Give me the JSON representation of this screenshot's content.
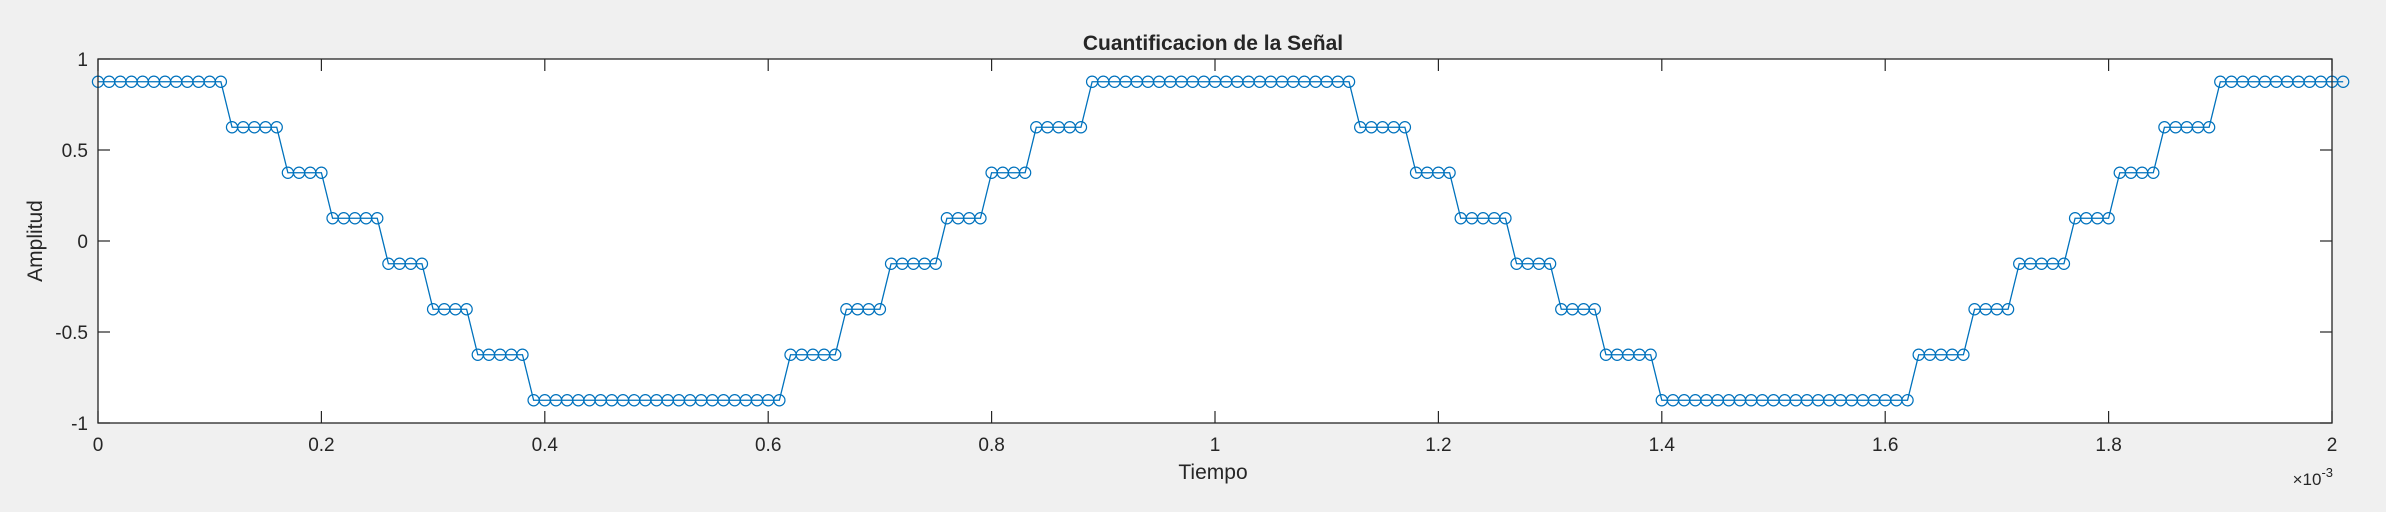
{
  "chart_data": {
    "type": "line",
    "title": "Cuantificacion de la Señal",
    "xlabel": "Tiempo",
    "ylabel": "Amplitud",
    "x_exponent_base": "×10",
    "x_exponent_power": "-3",
    "x_multiplier": 0.001,
    "xlim": [
      0,
      2
    ],
    "ylim": [
      -1,
      1
    ],
    "x_ticks": [
      0,
      0.2,
      0.4,
      0.6,
      0.8,
      1,
      1.2,
      1.4,
      1.6,
      1.8,
      2
    ],
    "x_tick_labels": [
      "0",
      "0.2",
      "0.4",
      "0.6",
      "0.8",
      "1",
      "1.2",
      "1.4",
      "1.6",
      "1.8",
      "2"
    ],
    "y_ticks": [
      -1,
      -0.5,
      0,
      0.5,
      1
    ],
    "y_tick_labels": [
      "-1",
      "-0.5",
      "0",
      "0.5",
      "1"
    ],
    "grid": false,
    "marker": "circle",
    "series_color": "#0072bd",
    "sampling": {
      "start": 0,
      "step": 0.01,
      "count": 201
    },
    "series": [
      {
        "values": [
          0.875,
          0.875,
          0.875,
          0.875,
          0.875,
          0.875,
          0.875,
          0.875,
          0.875,
          0.875,
          0.875,
          0.875,
          0.625,
          0.625,
          0.625,
          0.625,
          0.625,
          0.375,
          0.375,
          0.375,
          0.375,
          0.125,
          0.125,
          0.125,
          0.125,
          0.125,
          -0.125,
          -0.125,
          -0.125,
          -0.125,
          -0.375,
          -0.375,
          -0.375,
          -0.375,
          -0.625,
          -0.625,
          -0.625,
          -0.625,
          -0.625,
          -0.875,
          -0.875,
          -0.875,
          -0.875,
          -0.875,
          -0.875,
          -0.875,
          -0.875,
          -0.875,
          -0.875,
          -0.875,
          -0.875,
          -0.875,
          -0.875,
          -0.875,
          -0.875,
          -0.875,
          -0.875,
          -0.875,
          -0.875,
          -0.875,
          -0.875,
          -0.875,
          -0.625,
          -0.625,
          -0.625,
          -0.625,
          -0.625,
          -0.375,
          -0.375,
          -0.375,
          -0.375,
          -0.125,
          -0.125,
          -0.125,
          -0.125,
          -0.125,
          0.125,
          0.125,
          0.125,
          0.125,
          0.375,
          0.375,
          0.375,
          0.375,
          0.625,
          0.625,
          0.625,
          0.625,
          0.625,
          0.875,
          0.875,
          0.875,
          0.875,
          0.875,
          0.875,
          0.875,
          0.875,
          0.875,
          0.875,
          0.875,
          0.875,
          0.875,
          0.875,
          0.875,
          0.875,
          0.875,
          0.875,
          0.875,
          0.875,
          0.875,
          0.875,
          0.875,
          0.875,
          0.625,
          0.625,
          0.625,
          0.625,
          0.625,
          0.375,
          0.375,
          0.375,
          0.375,
          0.125,
          0.125,
          0.125,
          0.125,
          0.125,
          -0.125,
          -0.125,
          -0.125,
          -0.125,
          -0.375,
          -0.375,
          -0.375,
          -0.375,
          -0.625,
          -0.625,
          -0.625,
          -0.625,
          -0.625,
          -0.875,
          -0.875,
          -0.875,
          -0.875,
          -0.875,
          -0.875,
          -0.875,
          -0.875,
          -0.875,
          -0.875,
          -0.875,
          -0.875,
          -0.875,
          -0.875,
          -0.875,
          -0.875,
          -0.875,
          -0.875,
          -0.875,
          -0.875,
          -0.875,
          -0.875,
          -0.875,
          -0.625,
          -0.625,
          -0.625,
          -0.625,
          -0.625,
          -0.375,
          -0.375,
          -0.375,
          -0.375,
          -0.125,
          -0.125,
          -0.125,
          -0.125,
          -0.125,
          0.125,
          0.125,
          0.125,
          0.125,
          0.375,
          0.375,
          0.375,
          0.375,
          0.625,
          0.625,
          0.625,
          0.625,
          0.625,
          0.875,
          0.875,
          0.875,
          0.875,
          0.875,
          0.875,
          0.875,
          0.875,
          0.875,
          0.875,
          0.875,
          0.875
        ]
      }
    ]
  }
}
